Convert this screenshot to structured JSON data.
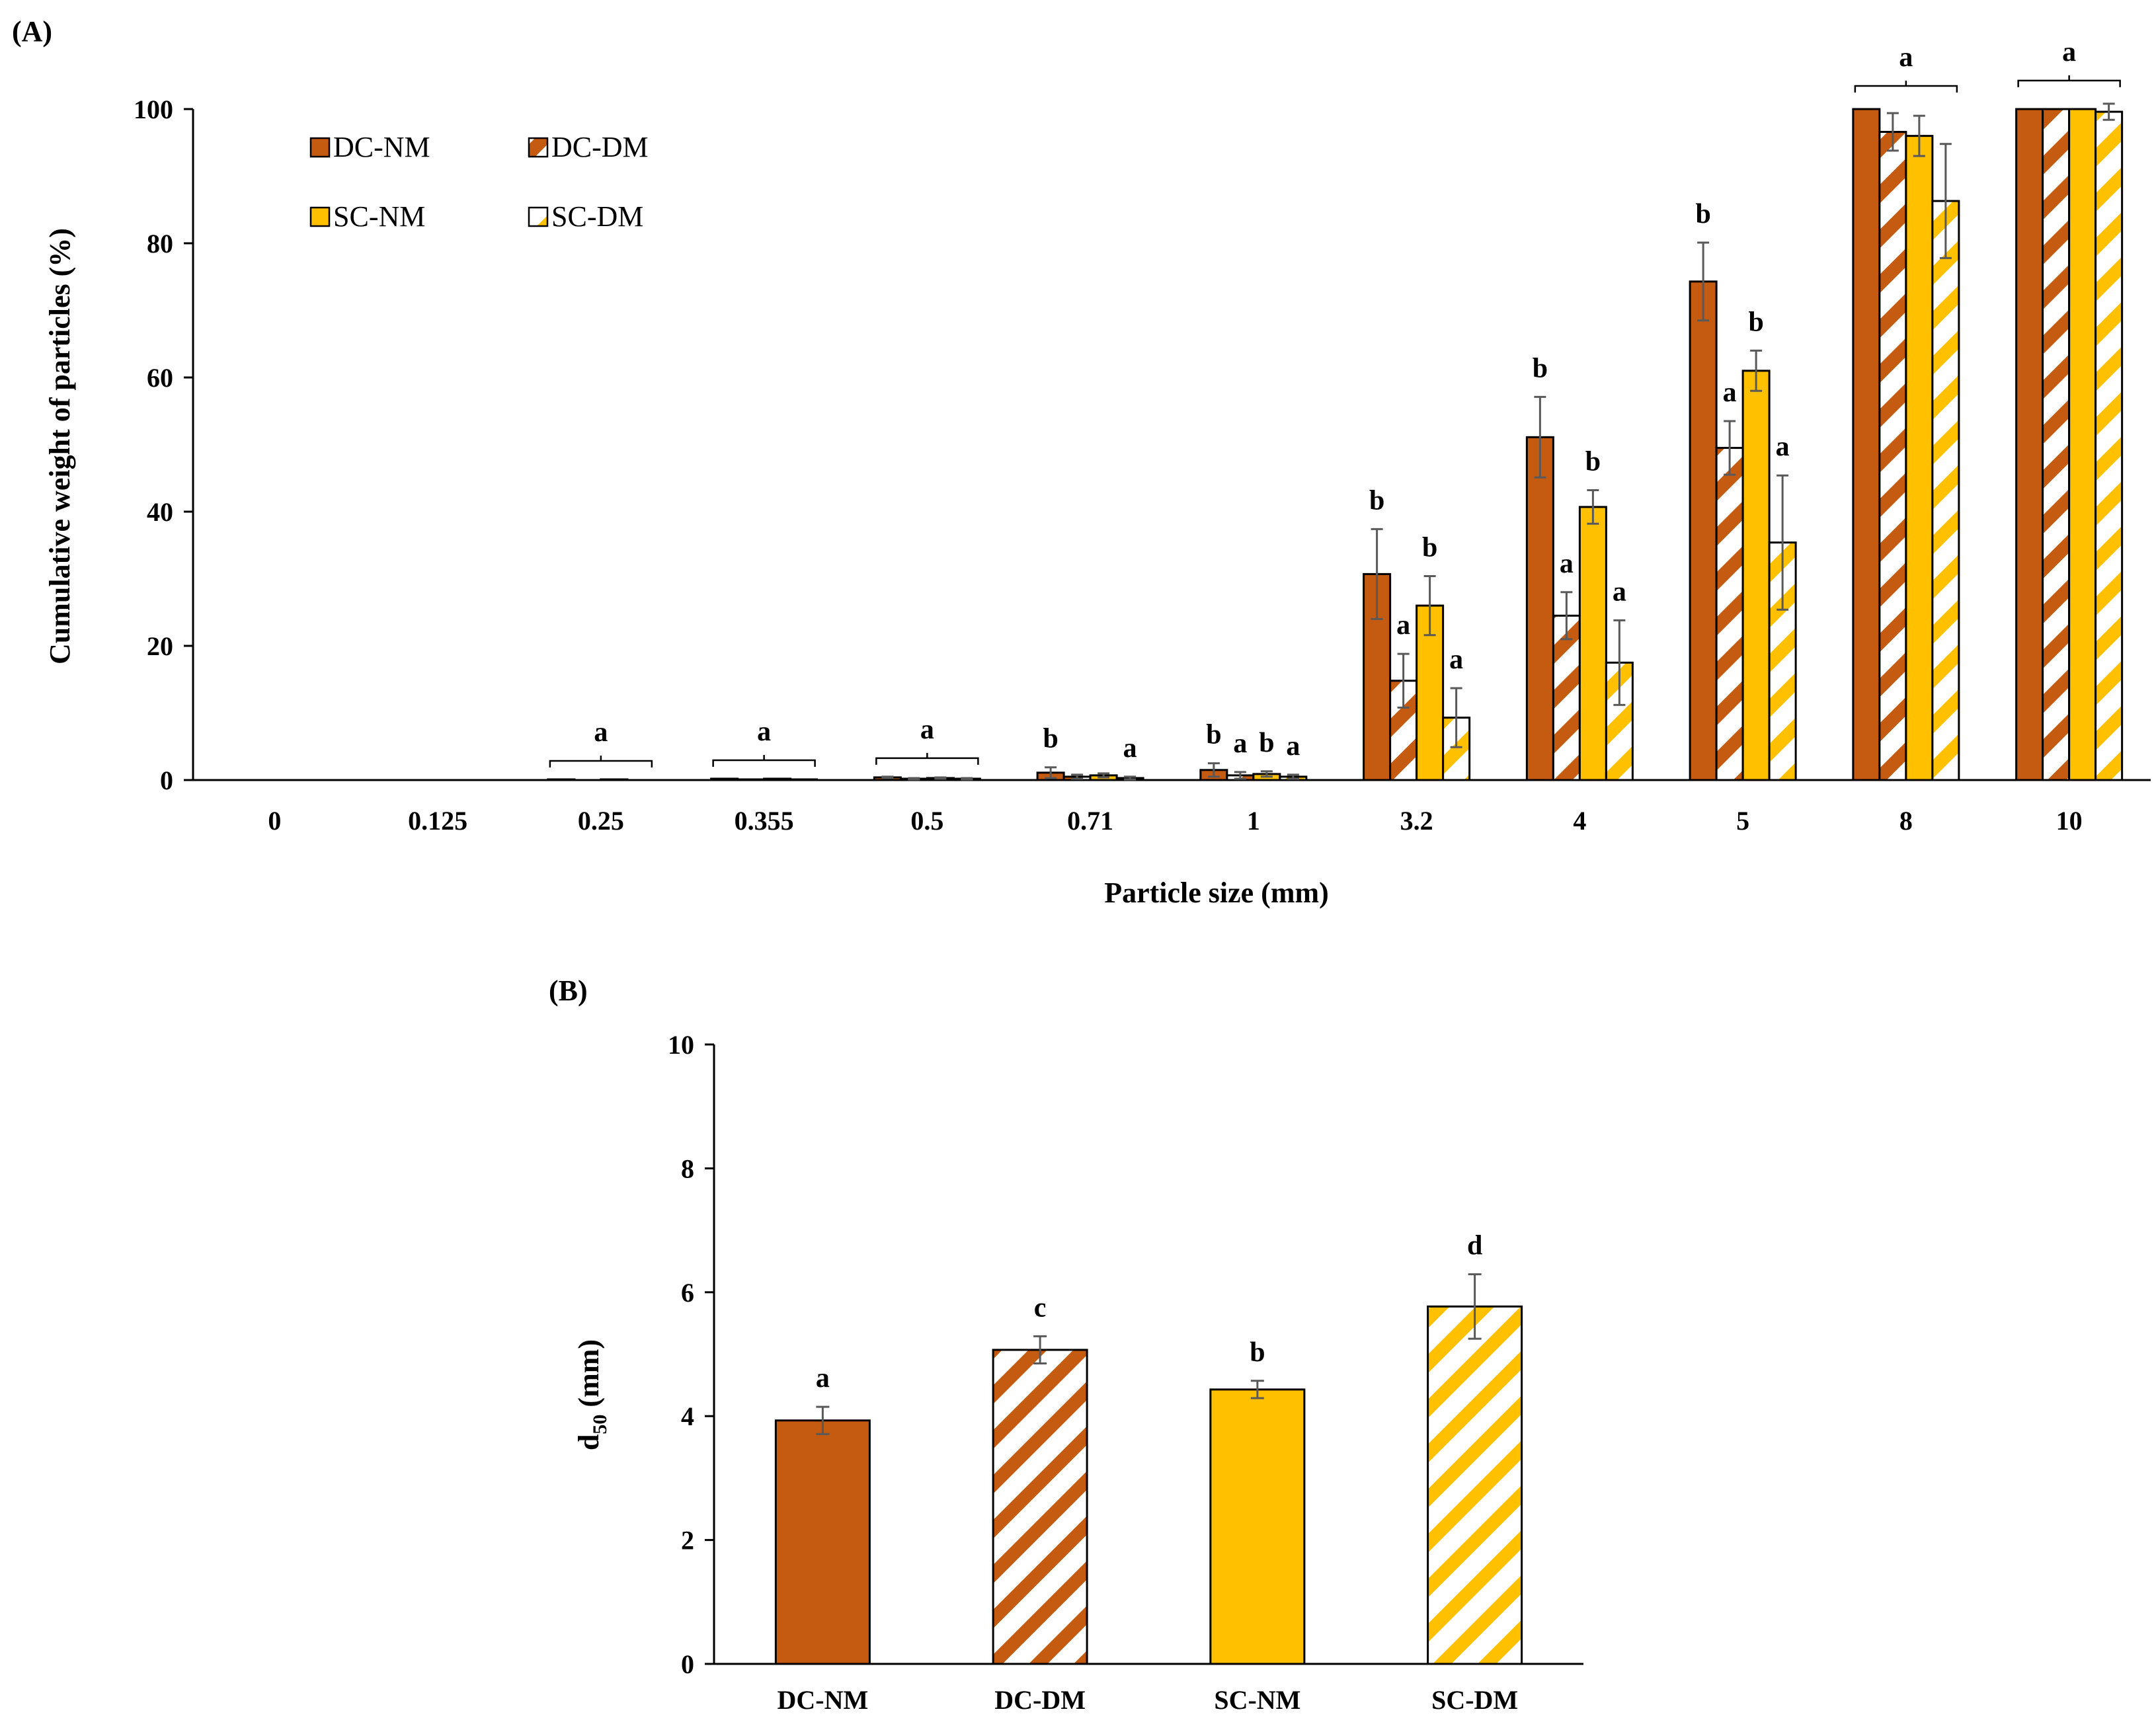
{
  "chart_data": [
    {
      "type": "bar",
      "panel_label": "(A)",
      "title": "",
      "xlabel": "Particle size (mm)",
      "ylabel": "Cumulative weight of particles (%)",
      "ylim": [
        0,
        100
      ],
      "yticks": [
        "0",
        "20",
        "40",
        "60",
        "80",
        "100"
      ],
      "categories": [
        "0",
        "0.125",
        "0.25",
        "0.355",
        "0.5",
        "0.71",
        "1",
        "3.2",
        "4",
        "5",
        "8",
        "10"
      ],
      "series": [
        {
          "name": "DC-NM",
          "color": "#C55A11",
          "pattern": "solid",
          "values": [
            0,
            0,
            0.1,
            0.2,
            0.4,
            1.1,
            1.5,
            30.7,
            51.1,
            74.3,
            100,
            100
          ],
          "errors": [
            0,
            0,
            0,
            0,
            0.1,
            0.8,
            1.0,
            6.7,
            6.0,
            5.8,
            0,
            0
          ]
        },
        {
          "name": "DC-DM",
          "color": "#C55A11",
          "pattern": "stripes",
          "values": [
            0,
            0,
            0,
            0.1,
            0.2,
            0.5,
            0.7,
            14.8,
            24.5,
            49.5,
            96.6,
            100
          ],
          "errors": [
            0,
            0,
            0,
            0,
            0.1,
            0.3,
            0.5,
            4.0,
            3.5,
            4.0,
            2.8,
            0
          ]
        },
        {
          "name": "SC-NM",
          "color": "#FFC000",
          "pattern": "solid",
          "values": [
            0,
            0,
            0.1,
            0.2,
            0.3,
            0.7,
            0.9,
            26.0,
            40.7,
            61.0,
            96.0,
            100
          ],
          "errors": [
            0,
            0,
            0,
            0,
            0.1,
            0.3,
            0.4,
            4.4,
            2.5,
            3.0,
            3.0,
            0
          ]
        },
        {
          "name": "SC-DM",
          "color": "#FFC000",
          "pattern": "stripes",
          "values": [
            0,
            0,
            0,
            0.1,
            0.2,
            0.3,
            0.5,
            9.3,
            17.5,
            35.4,
            86.3,
            99.6
          ],
          "errors": [
            0,
            0,
            0,
            0,
            0.1,
            0.2,
            0.3,
            4.4,
            6.3,
            10.0,
            8.5,
            1.2
          ]
        }
      ],
      "significance_letters": [
        {
          "category": "0.25",
          "letter": "a",
          "group": true
        },
        {
          "category": "0.355",
          "letter": "a",
          "group": true
        },
        {
          "category": "0.5",
          "letter": "a",
          "group": true
        },
        {
          "category": "0.71",
          "series": "DC-NM",
          "letter": "b"
        },
        {
          "category": "0.71",
          "series": "SC-DM",
          "letter": "a"
        },
        {
          "category": "1",
          "series": "DC-NM",
          "letter": "b"
        },
        {
          "category": "1",
          "series": "DC-DM",
          "letter": "a"
        },
        {
          "category": "1",
          "series": "SC-NM",
          "letter": "b"
        },
        {
          "category": "1",
          "series": "SC-DM",
          "letter": "a"
        },
        {
          "category": "3.2",
          "series": "DC-NM",
          "letter": "b"
        },
        {
          "category": "3.2",
          "series": "DC-DM",
          "letter": "a"
        },
        {
          "category": "3.2",
          "series": "SC-NM",
          "letter": "b"
        },
        {
          "category": "3.2",
          "series": "SC-DM",
          "letter": "a"
        },
        {
          "category": "4",
          "series": "DC-NM",
          "letter": "b"
        },
        {
          "category": "4",
          "series": "DC-DM",
          "letter": "a"
        },
        {
          "category": "4",
          "series": "SC-NM",
          "letter": "b"
        },
        {
          "category": "4",
          "series": "SC-DM",
          "letter": "a"
        },
        {
          "category": "5",
          "series": "DC-NM",
          "letter": "b"
        },
        {
          "category": "5",
          "series": "DC-DM",
          "letter": "a"
        },
        {
          "category": "5",
          "series": "SC-NM",
          "letter": "b"
        },
        {
          "category": "5",
          "series": "SC-DM",
          "letter": "a"
        },
        {
          "category": "8",
          "letter": "a",
          "group": true
        },
        {
          "category": "10",
          "letter": "a",
          "group": true
        }
      ],
      "legend": {
        "position": "top-left",
        "entries": [
          "DC-NM",
          "DC-DM",
          "SC-NM",
          "SC-DM"
        ]
      }
    },
    {
      "type": "bar",
      "panel_label": "(B)",
      "title": "",
      "xlabel": "",
      "ylabel_main": "d",
      "ylabel_sub": "50",
      "ylabel_unit": " (mm)",
      "ylim": [
        0,
        10
      ],
      "yticks": [
        "0",
        "2",
        "4",
        "6",
        "8",
        "10"
      ],
      "categories": [
        "DC-NM",
        "DC-DM",
        "SC-NM",
        "SC-DM"
      ],
      "colors": [
        "#C55A11",
        "#C55A11",
        "#FFC000",
        "#FFC000"
      ],
      "patterns": [
        "solid",
        "stripes",
        "solid",
        "stripes"
      ],
      "values": [
        3.93,
        5.07,
        4.43,
        5.77
      ],
      "errors": [
        0.22,
        0.22,
        0.14,
        0.52
      ],
      "letters": [
        "a",
        "c",
        "b",
        "d"
      ]
    }
  ]
}
